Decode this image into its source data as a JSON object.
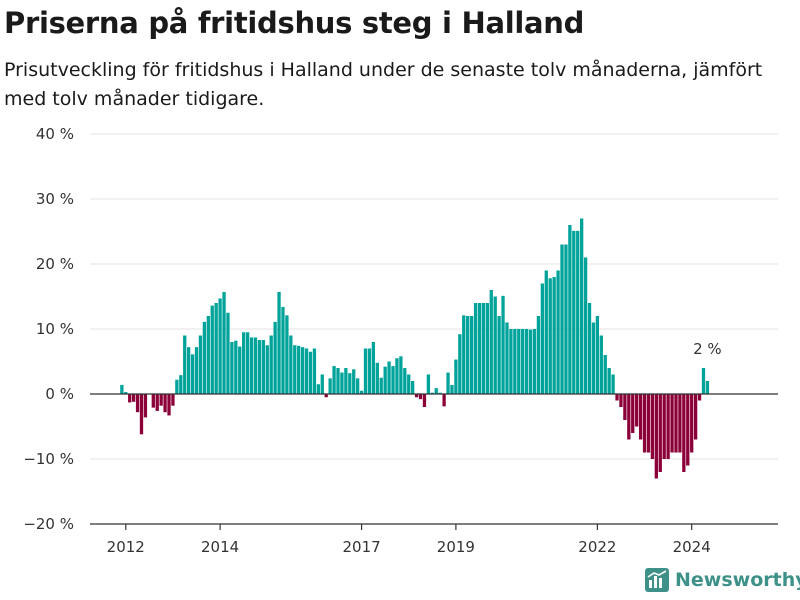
{
  "header": {
    "title": "Priserna på fritidshus steg i Halland",
    "subtitle": "Prisutveckling för fritidshus i Halland under de senaste tolv månaderna, jämfört med tolv månader tidigare."
  },
  "brand": {
    "name": "Newsworthy",
    "icon": "bar-chart-logo-icon",
    "color": "#3e9188"
  },
  "chart_data": {
    "type": "bar",
    "x_start": "2011-12",
    "x_step": "month",
    "values": [
      1.4,
      0.3,
      -1.3,
      -1.2,
      -2.8,
      -6.2,
      -3.6,
      0,
      -2.1,
      -2.6,
      -1.8,
      -2.8,
      -3.3,
      -1.8,
      2.2,
      2.9,
      9.0,
      7.2,
      6.1,
      7.2,
      9.0,
      11.1,
      12.0,
      13.6,
      14.0,
      14.7,
      15.7,
      12.5,
      8.0,
      8.2,
      7.3,
      9.5,
      9.5,
      8.7,
      8.7,
      8.3,
      8.3,
      7.5,
      9.0,
      11.1,
      15.7,
      13.4,
      12.1,
      9.0,
      7.5,
      7.4,
      7.2,
      7.0,
      6.5,
      7.0,
      1.5,
      3.0,
      -0.5,
      2.4,
      4.3,
      4.0,
      3.3,
      4.0,
      3.2,
      3.8,
      2.4,
      0.5,
      7.0,
      7.0,
      8.0,
      4.8,
      2.5,
      4.2,
      5.0,
      4.3,
      5.5,
      5.8,
      4.0,
      3.0,
      2.0,
      -0.5,
      -0.8,
      -2.0,
      3.0,
      0.2,
      0.9,
      0.2,
      -1.9,
      3.3,
      1.4,
      5.3,
      9.2,
      12.1,
      12.0,
      12.0,
      14.0,
      14.0,
      14.0,
      14.0,
      16.0,
      15.0,
      12.0,
      15.1,
      11.0,
      10.0,
      10.0,
      10.0,
      10.0,
      10.0,
      9.9,
      10.0,
      12.0,
      17.0,
      19.0,
      17.8,
      18.0,
      19.0,
      23.0,
      23.0,
      26.0,
      25.1,
      25.1,
      27.0,
      21.0,
      14.0,
      11.0,
      12.0,
      9.0,
      6.0,
      4.0,
      3.0,
      -1.0,
      -2.0,
      -4.0,
      -7.0,
      -6.0,
      -5.0,
      -7.0,
      -9.0,
      -9.0,
      -10.0,
      -13.0,
      -12.0,
      -10.0,
      -10.0,
      -9.0,
      -9.0,
      -9.0,
      -12.0,
      -11.0,
      -9.0,
      -7.0,
      -1.0,
      4.0,
      2.0
    ],
    "x_ticks": [
      {
        "label": "2012",
        "year": 2012,
        "month": 1
      },
      {
        "label": "2014",
        "year": 2014,
        "month": 1
      },
      {
        "label": "2017",
        "year": 2017,
        "month": 1
      },
      {
        "label": "2019",
        "year": 2019,
        "month": 1
      },
      {
        "label": "2022",
        "year": 2022,
        "month": 1
      },
      {
        "label": "2024",
        "year": 2024,
        "month": 1
      }
    ],
    "y_ticks": [
      {
        "value": 40,
        "label": "40 %"
      },
      {
        "value": 30,
        "label": "30 %"
      },
      {
        "value": 20,
        "label": "20 %"
      },
      {
        "value": 10,
        "label": "10 %"
      },
      {
        "value": 0,
        "label": "0 %"
      },
      {
        "value": -10,
        "label": "−10 %"
      },
      {
        "value": -20,
        "label": "−20 %"
      }
    ],
    "ylim": [
      -20,
      40
    ],
    "grid": true,
    "legend": "none",
    "colors": {
      "positive": "#00a39a",
      "negative": "#8c0039"
    },
    "annotation": {
      "text": "2 %"
    }
  }
}
